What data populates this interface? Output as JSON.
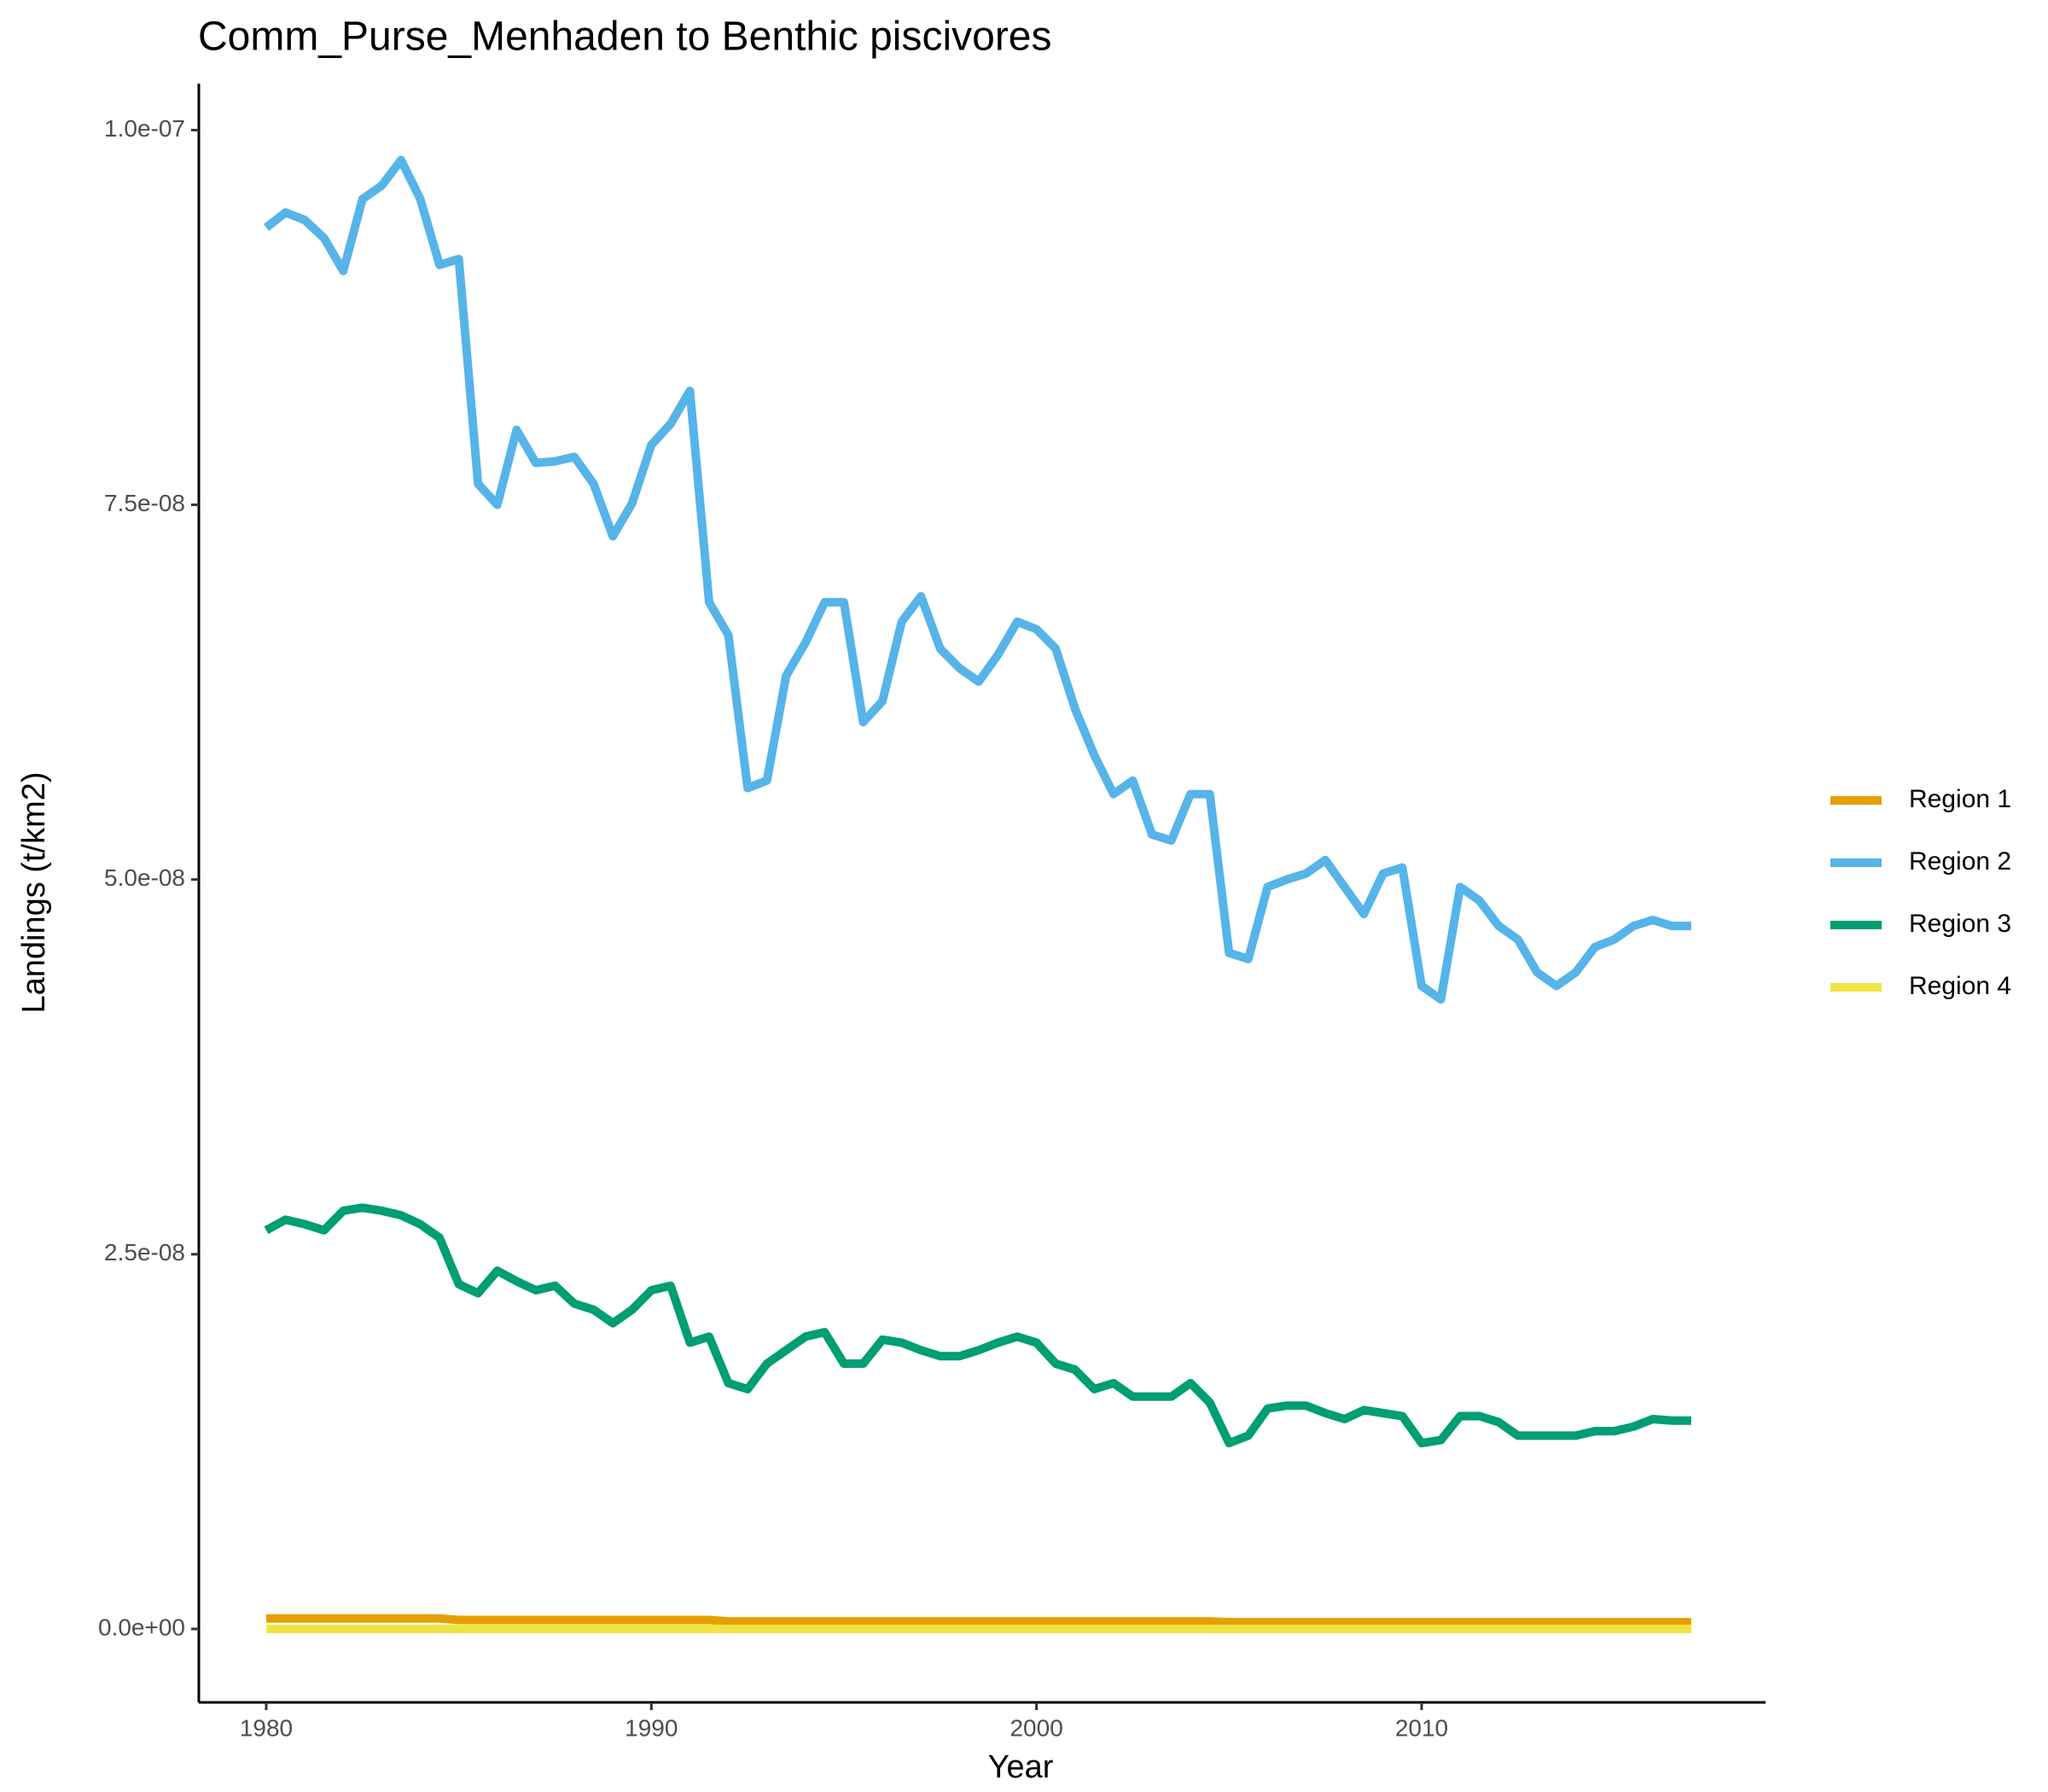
{
  "chart_data": {
    "type": "line",
    "title": "Comm_Purse_Menhaden to Benthic piscivores",
    "x_label": "Year",
    "y_label": "Landings (t/km2)",
    "x": [
      1980,
      1980.5,
      1981,
      1981.5,
      1982,
      1982.5,
      1983,
      1983.5,
      1984,
      1984.5,
      1985,
      1985.5,
      1986,
      1986.5,
      1987,
      1987.5,
      1988,
      1988.5,
      1989,
      1989.5,
      1990,
      1990.5,
      1991,
      1991.5,
      1992,
      1992.5,
      1993,
      1993.5,
      1994,
      1994.5,
      1995,
      1995.5,
      1996,
      1996.5,
      1997,
      1997.5,
      1998,
      1998.5,
      1999,
      1999.5,
      2000,
      2000.5,
      2001,
      2001.5,
      2002,
      2002.5,
      2003,
      2003.5,
      2004,
      2004.5,
      2005,
      2005.5,
      2006,
      2006.5,
      2007,
      2007.5,
      2008,
      2008.5,
      2009,
      2009.5,
      2010,
      2010.5,
      2011,
      2011.5,
      2012,
      2012.5,
      2013,
      2013.5,
      2014,
      2014.5,
      2015,
      2015.5,
      2016,
      2016.5,
      2017
    ],
    "series": [
      {
        "name": "Region 1",
        "color": "#E69F00",
        "values": [
          7e-10,
          7e-10,
          7e-10,
          7e-10,
          7e-10,
          7e-10,
          7e-10,
          7e-10,
          7e-10,
          7e-10,
          6e-10,
          6e-10,
          6e-10,
          6e-10,
          6e-10,
          6e-10,
          6e-10,
          6e-10,
          6e-10,
          6e-10,
          6e-10,
          6e-10,
          6e-10,
          6e-10,
          5e-10,
          5e-10,
          5e-10,
          5e-10,
          5e-10,
          5e-10,
          5e-10,
          5e-10,
          5e-10,
          5e-10,
          5e-10,
          5e-10,
          5e-10,
          5e-10,
          5e-10,
          5e-10,
          5e-10,
          5e-10,
          5e-10,
          5e-10,
          5e-10,
          5e-10,
          5e-10,
          5e-10,
          5e-10,
          5e-10,
          4.5e-10,
          4.5e-10,
          4.5e-10,
          4.5e-10,
          4.5e-10,
          4.5e-10,
          4.5e-10,
          4.5e-10,
          4.5e-10,
          4.5e-10,
          4.5e-10,
          4.5e-10,
          4.5e-10,
          4.5e-10,
          4.5e-10,
          4.5e-10,
          4.5e-10,
          4.5e-10,
          4.5e-10,
          4.5e-10,
          4.5e-10,
          4.5e-10,
          4.5e-10,
          4.5e-10,
          4.5e-10
        ]
      },
      {
        "name": "Region 2",
        "color": "#56B4E9",
        "values": [
          9.35e-08,
          9.45e-08,
          9.4e-08,
          9.28e-08,
          9.06e-08,
          9.54e-08,
          9.63e-08,
          9.8e-08,
          9.54e-08,
          9.1e-08,
          9.14e-08,
          7.64e-08,
          7.5e-08,
          8e-08,
          7.78e-08,
          7.79e-08,
          7.82e-08,
          7.64e-08,
          7.29e-08,
          7.51e-08,
          7.9e-08,
          8.04e-08,
          8.26e-08,
          6.85e-08,
          6.63e-08,
          5.61e-08,
          5.66e-08,
          6.36e-08,
          6.58e-08,
          6.85e-08,
          6.85e-08,
          6.05e-08,
          6.19e-08,
          6.72e-08,
          6.89e-08,
          6.54e-08,
          6.41e-08,
          6.32e-08,
          6.5e-08,
          6.72e-08,
          6.67e-08,
          6.54e-08,
          6.14e-08,
          5.83e-08,
          5.57e-08,
          5.66e-08,
          5.3e-08,
          5.26e-08,
          5.57e-08,
          5.57e-08,
          4.51e-08,
          4.47e-08,
          4.95e-08,
          5e-08,
          5.04e-08,
          5.13e-08,
          4.95e-08,
          4.77e-08,
          5.04e-08,
          5.08e-08,
          4.29e-08,
          4.2e-08,
          4.95e-08,
          4.86e-08,
          4.69e-08,
          4.6e-08,
          4.38e-08,
          4.29e-08,
          4.38e-08,
          4.55e-08,
          4.6e-08,
          4.69e-08,
          4.73e-08,
          4.69e-08,
          4.69e-08
        ]
      },
      {
        "name": "Region 3",
        "color": "#009E73",
        "values": [
          2.66e-08,
          2.73e-08,
          2.7e-08,
          2.66e-08,
          2.79e-08,
          2.81e-08,
          2.79e-08,
          2.76e-08,
          2.7e-08,
          2.61e-08,
          2.3e-08,
          2.24e-08,
          2.39e-08,
          2.32e-08,
          2.26e-08,
          2.29e-08,
          2.17e-08,
          2.13e-08,
          2.04e-08,
          2.13e-08,
          2.26e-08,
          2.29e-08,
          1.91e-08,
          1.95e-08,
          1.64e-08,
          1.6e-08,
          1.77e-08,
          1.86e-08,
          1.95e-08,
          1.98e-08,
          1.77e-08,
          1.77e-08,
          1.93e-08,
          1.91e-08,
          1.86e-08,
          1.82e-08,
          1.82e-08,
          1.86e-08,
          1.91e-08,
          1.95e-08,
          1.91e-08,
          1.77e-08,
          1.73e-08,
          1.6e-08,
          1.64e-08,
          1.55e-08,
          1.55e-08,
          1.55e-08,
          1.64e-08,
          1.51e-08,
          1.24e-08,
          1.29e-08,
          1.47e-08,
          1.49e-08,
          1.49e-08,
          1.44e-08,
          1.4e-08,
          1.46e-08,
          1.44e-08,
          1.42e-08,
          1.24e-08,
          1.26e-08,
          1.42e-08,
          1.42e-08,
          1.38e-08,
          1.29e-08,
          1.29e-08,
          1.29e-08,
          1.29e-08,
          1.32e-08,
          1.32e-08,
          1.35e-08,
          1.4e-08,
          1.39e-08,
          1.39e-08
        ]
      },
      {
        "name": "Region 4",
        "color": "#F0E442",
        "values": [
          0,
          0,
          0,
          0,
          0,
          0,
          0,
          0,
          0,
          0,
          0,
          0,
          0,
          0,
          0,
          0,
          0,
          0,
          0,
          0,
          0,
          0,
          0,
          0,
          0,
          0,
          0,
          0,
          0,
          0,
          0,
          0,
          0,
          0,
          0,
          0,
          0,
          0,
          0,
          0,
          0,
          0,
          0,
          0,
          0,
          0,
          0,
          0,
          0,
          0,
          0,
          0,
          0,
          0,
          0,
          0,
          0,
          0,
          0,
          0,
          0,
          0,
          0,
          0,
          0,
          0,
          0,
          0,
          0,
          0,
          0,
          0,
          0,
          0,
          0
        ]
      }
    ],
    "xlim": [
      1978.25,
      2018.93
    ],
    "xticks": [
      1980,
      1990,
      2000,
      2010
    ],
    "ylim": [
      -4.9e-09,
      1.031e-07
    ],
    "yticks": [
      {
        "value": 0,
        "label": "0.0e+00"
      },
      {
        "value": 2.5e-08,
        "label": "2.5e-08"
      },
      {
        "value": 5e-08,
        "label": "5.0e-08"
      },
      {
        "value": 7.5e-08,
        "label": "7.5e-08"
      },
      {
        "value": 1e-07,
        "label": "1.0e-07"
      }
    ],
    "legend": "right",
    "grid": false
  }
}
